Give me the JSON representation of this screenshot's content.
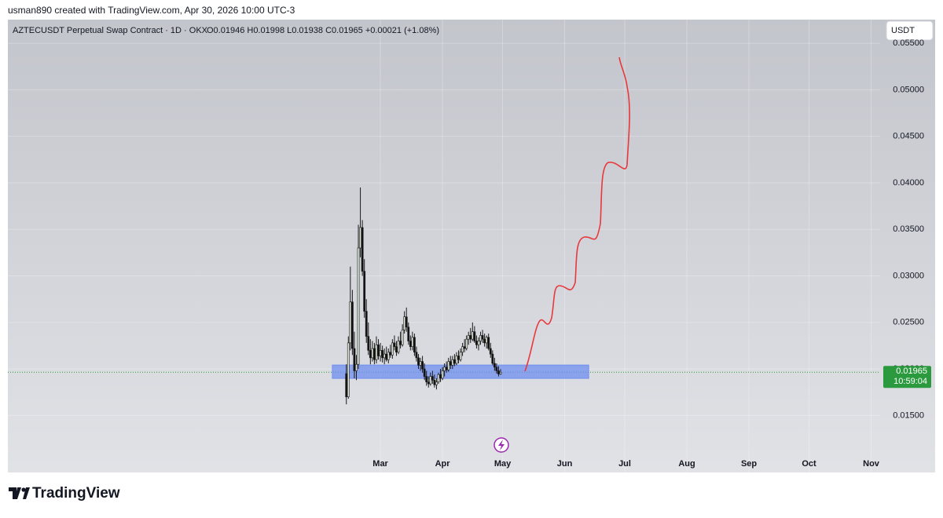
{
  "header": {
    "attribution": "usman890 created with TradingView.com, Apr 30, 2026 10:00 UTC-3",
    "currency_button": "USDT",
    "brand": "TradingView"
  },
  "chart_data": {
    "type": "candlestick",
    "title": "AZTECUSDT Perpetual Swap Contract · 1D · OKX",
    "ohlc_text": "O0.01946 H0.01998 L0.01938 C0.01965 +0.00021 (+1.08%)",
    "countdown": "10:59:04",
    "up_color": "#dfe9dc",
    "down_color": "#121212",
    "wick_color": "#1a1a1a",
    "last_price_color": "#2b9a3e",
    "open": [
      0.0195,
      0.017,
      0.0228,
      0.0272,
      0.0222,
      0.0198,
      0.0205,
      0.033,
      0.0352,
      0.0305,
      0.0262,
      0.0235,
      0.022,
      0.0212,
      0.0222,
      0.021,
      0.0226,
      0.0214,
      0.022,
      0.0212,
      0.0216,
      0.021,
      0.0218,
      0.0215,
      0.0228,
      0.0224,
      0.0218,
      0.023,
      0.0226,
      0.0242,
      0.0256,
      0.0245,
      0.023,
      0.0224,
      0.0234,
      0.0218,
      0.0212,
      0.0204,
      0.0208,
      0.02,
      0.0192,
      0.0186,
      0.0184,
      0.0192,
      0.0188,
      0.0183,
      0.0186,
      0.0194,
      0.019,
      0.0198,
      0.0202,
      0.0199,
      0.0208,
      0.0204,
      0.021,
      0.0206,
      0.0214,
      0.021,
      0.0218,
      0.0224,
      0.0222,
      0.0232,
      0.0236,
      0.0232,
      0.024,
      0.023,
      0.0226,
      0.023,
      0.0236,
      0.0232,
      0.0228,
      0.0234,
      0.0222,
      0.0216,
      0.0206,
      0.0202,
      0.0198,
      0.01946
    ],
    "high": [
      0.0205,
      0.0235,
      0.031,
      0.0285,
      0.024,
      0.0215,
      0.0355,
      0.0395,
      0.036,
      0.0318,
      0.0275,
      0.025,
      0.0232,
      0.023,
      0.0228,
      0.0235,
      0.0232,
      0.0228,
      0.0225,
      0.0222,
      0.0224,
      0.0222,
      0.0226,
      0.0232,
      0.0236,
      0.023,
      0.0235,
      0.024,
      0.0248,
      0.0262,
      0.0266,
      0.025,
      0.0236,
      0.024,
      0.0238,
      0.0224,
      0.0216,
      0.0212,
      0.0214,
      0.0206,
      0.0198,
      0.0192,
      0.0196,
      0.0198,
      0.0194,
      0.019,
      0.0196,
      0.02,
      0.0202,
      0.0206,
      0.0208,
      0.0212,
      0.0214,
      0.0214,
      0.0216,
      0.0218,
      0.022,
      0.0222,
      0.0228,
      0.0232,
      0.0236,
      0.024,
      0.0244,
      0.025,
      0.0246,
      0.0236,
      0.0234,
      0.024,
      0.0242,
      0.0238,
      0.0236,
      0.0238,
      0.0228,
      0.022,
      0.0212,
      0.0206,
      0.0203,
      0.01998
    ],
    "low": [
      0.0162,
      0.0168,
      0.022,
      0.0215,
      0.019,
      0.0188,
      0.02,
      0.032,
      0.03,
      0.0255,
      0.0228,
      0.0215,
      0.0205,
      0.0208,
      0.0205,
      0.0206,
      0.021,
      0.0208,
      0.0207,
      0.0205,
      0.0208,
      0.0206,
      0.0212,
      0.0211,
      0.022,
      0.0214,
      0.0216,
      0.0222,
      0.0224,
      0.0238,
      0.024,
      0.0226,
      0.022,
      0.022,
      0.0214,
      0.0208,
      0.02,
      0.0198,
      0.0196,
      0.0188,
      0.0182,
      0.018,
      0.0182,
      0.0184,
      0.018,
      0.0178,
      0.0184,
      0.0186,
      0.0188,
      0.0192,
      0.0196,
      0.0197,
      0.02,
      0.02,
      0.0203,
      0.0204,
      0.0206,
      0.0208,
      0.0214,
      0.0218,
      0.022,
      0.0226,
      0.0228,
      0.023,
      0.0228,
      0.0222,
      0.022,
      0.0226,
      0.0228,
      0.0224,
      0.0222,
      0.022,
      0.0212,
      0.0204,
      0.0198,
      0.0195,
      0.0192,
      0.01938
    ],
    "close": [
      0.017,
      0.0228,
      0.0272,
      0.0222,
      0.0198,
      0.0205,
      0.033,
      0.0352,
      0.0305,
      0.0262,
      0.0235,
      0.022,
      0.0212,
      0.0222,
      0.021,
      0.0226,
      0.0214,
      0.022,
      0.0212,
      0.0216,
      0.021,
      0.0218,
      0.0215,
      0.0228,
      0.0224,
      0.0218,
      0.023,
      0.0226,
      0.0242,
      0.0256,
      0.0245,
      0.023,
      0.0224,
      0.0234,
      0.0218,
      0.0212,
      0.0204,
      0.0208,
      0.02,
      0.0192,
      0.0186,
      0.0184,
      0.0192,
      0.0188,
      0.0183,
      0.0186,
      0.0194,
      0.019,
      0.0198,
      0.0202,
      0.0199,
      0.0208,
      0.0204,
      0.021,
      0.0206,
      0.0214,
      0.021,
      0.0218,
      0.0224,
      0.0222,
      0.0232,
      0.0236,
      0.0232,
      0.024,
      0.023,
      0.0226,
      0.023,
      0.0236,
      0.0232,
      0.0228,
      0.0234,
      0.0222,
      0.0216,
      0.0206,
      0.0202,
      0.0198,
      0.01946,
      0.01965
    ],
    "ylim": [
      0.0109,
      0.0556
    ],
    "yticks": [
      {
        "value": 0.015,
        "label": "0.01500"
      },
      {
        "value": 0.02,
        "label": "0.02000"
      },
      {
        "value": 0.025,
        "label": "0.02500"
      },
      {
        "value": 0.03,
        "label": "0.03000"
      },
      {
        "value": 0.035,
        "label": "0.03500"
      },
      {
        "value": 0.04,
        "label": "0.04000"
      },
      {
        "value": 0.045,
        "label": "0.04500"
      },
      {
        "value": 0.05,
        "label": "0.05000"
      },
      {
        "value": 0.055,
        "label": "0.05500"
      }
    ],
    "xlim": [
      -169,
      266.5
    ],
    "xticks": [
      {
        "value": 17,
        "label": "Mar"
      },
      {
        "value": 48,
        "label": "Apr"
      },
      {
        "value": 78,
        "label": "May"
      },
      {
        "value": 109,
        "label": "Jun"
      },
      {
        "value": 139,
        "label": "Jul"
      },
      {
        "value": 170,
        "label": "Aug"
      },
      {
        "value": 201,
        "label": "Sep"
      },
      {
        "value": 231,
        "label": "Oct"
      },
      {
        "value": 262,
        "label": "Nov"
      }
    ],
    "grid": true,
    "zone": {
      "xlim": [
        -7,
        121
      ],
      "ylim": [
        0.01899,
        0.02042
      ],
      "color": "#6f8ff0"
    }
  }
}
